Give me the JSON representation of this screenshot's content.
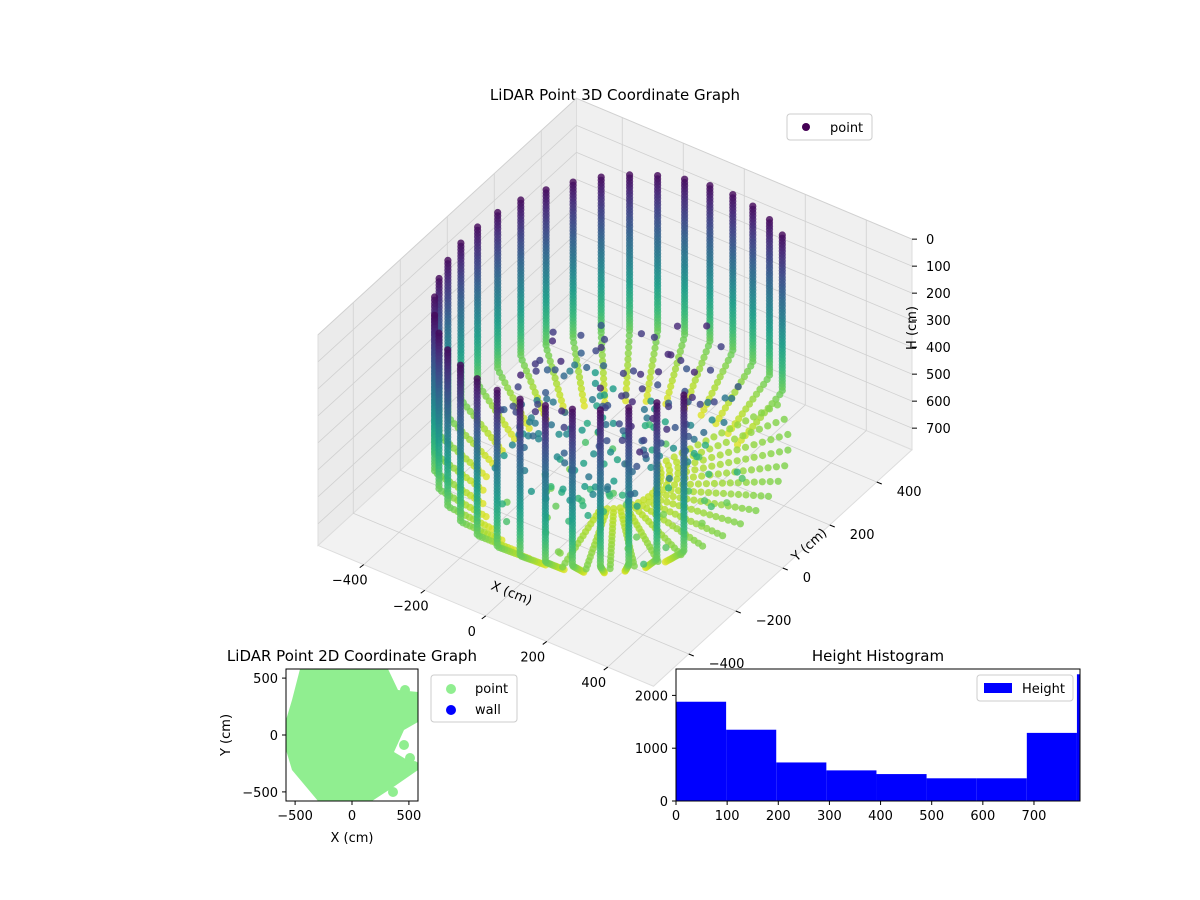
{
  "chart_data": [
    {
      "type": "scatter3d",
      "title": "LiDAR Point 3D Coordinate Graph",
      "xlabel": "X (cm)",
      "ylabel": "Y (cm)",
      "zlabel": "H (cm)",
      "xlim": [
        -550,
        550
      ],
      "ylim": [
        -550,
        550
      ],
      "zlim": [
        800,
        0
      ],
      "xticks": [
        -400,
        -200,
        0,
        200,
        400
      ],
      "yticks": [
        -400,
        -200,
        0,
        200,
        400
      ],
      "zticks": [
        0,
        100,
        200,
        300,
        400,
        500,
        600,
        700
      ],
      "colormap": "viridis",
      "legend": {
        "position": "top-right",
        "entries": [
          {
            "label": "point",
            "color": "#440154"
          }
        ]
      },
      "series": [
        {
          "name": "point",
          "description_range": {
            "h_min": 0,
            "h_max": 780
          }
        }
      ]
    },
    {
      "type": "scatter",
      "title": "LiDAR Point 2D Coordinate Graph",
      "xlabel": "X (cm)",
      "ylabel": "Y (cm)",
      "xlim": [
        -580,
        580
      ],
      "ylim": [
        -580,
        580
      ],
      "xticks": [
        -500,
        0,
        500
      ],
      "yticks": [
        -500,
        0,
        500
      ],
      "legend": {
        "position": "outside-right",
        "entries": [
          {
            "label": "point",
            "color": "#90ee90"
          },
          {
            "label": "wall",
            "color": "#0000ff"
          }
        ]
      }
    },
    {
      "type": "bar",
      "title": "Height Histogram",
      "xlim": [
        0,
        790
      ],
      "ylim": [
        0,
        2500
      ],
      "xticks": [
        0,
        100,
        200,
        300,
        400,
        500,
        600,
        700
      ],
      "yticks": [
        0,
        1000,
        2000
      ],
      "color": "#0000ff",
      "legend": {
        "position": "top-right",
        "entries": [
          {
            "label": "Height",
            "color": "#0000ff"
          }
        ]
      },
      "bins": [
        {
          "x0": 0,
          "x1": 98,
          "count": 1880
        },
        {
          "x0": 98,
          "x1": 196,
          "count": 1350
        },
        {
          "x0": 196,
          "x1": 294,
          "count": 730
        },
        {
          "x0": 294,
          "x1": 392,
          "count": 580
        },
        {
          "x0": 392,
          "x1": 490,
          "count": 510
        },
        {
          "x0": 490,
          "x1": 588,
          "count": 430
        },
        {
          "x0": 588,
          "x1": 686,
          "count": 430
        },
        {
          "x0": 686,
          "x1": 784,
          "count": 1290
        },
        {
          "x0": 784,
          "x1": 790,
          "count": 2400
        }
      ]
    }
  ]
}
